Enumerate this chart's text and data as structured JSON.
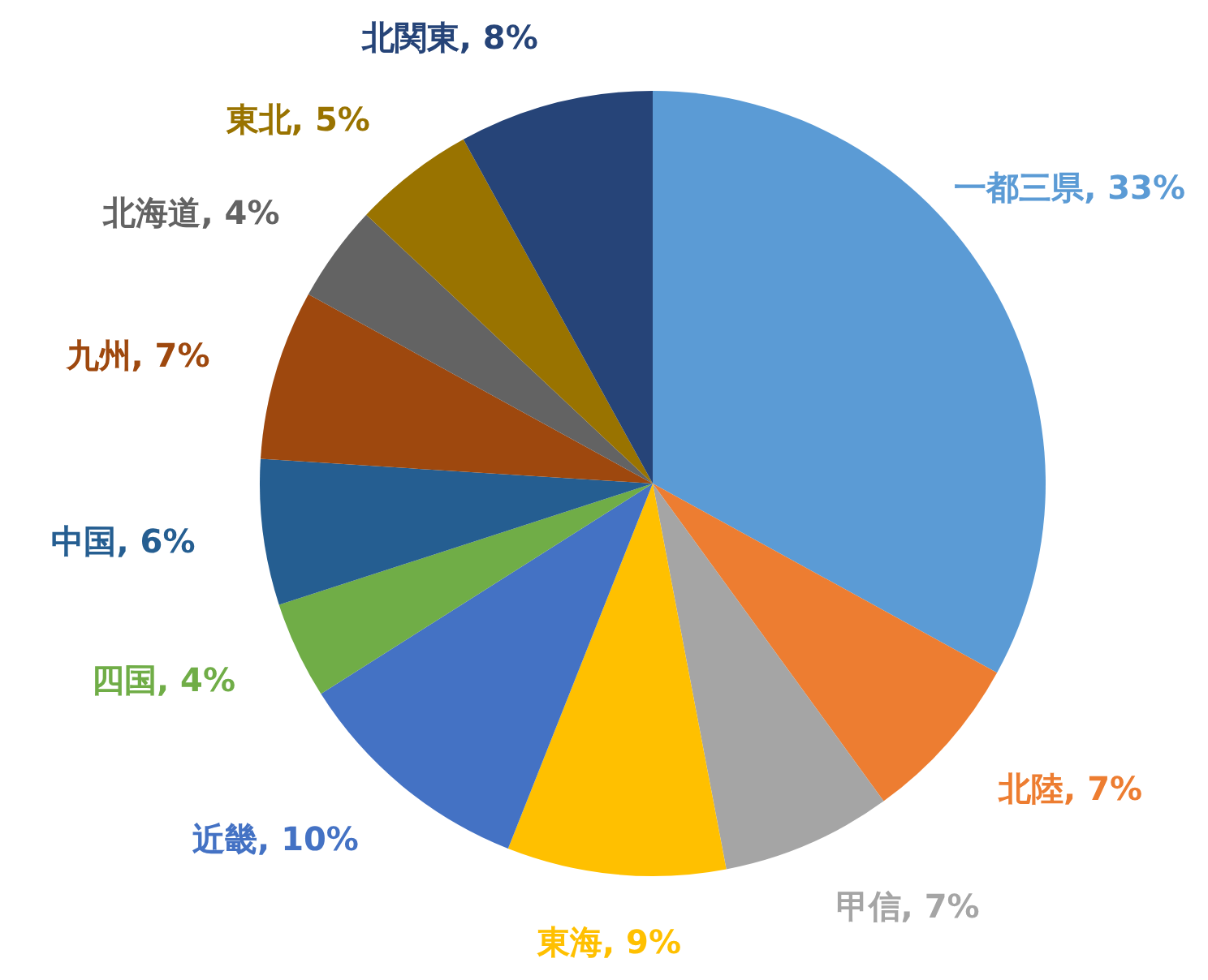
{
  "chart_data": {
    "type": "pie",
    "categories": [
      "一都三県",
      "北陸",
      "甲信",
      "東海",
      "近畿",
      "四国",
      "中国",
      "九州",
      "北海道",
      "東北",
      "北関東"
    ],
    "values": [
      33,
      7,
      7,
      9,
      10,
      4,
      6,
      7,
      4,
      5,
      8
    ],
    "value_labels": [
      "33%",
      "7%",
      "7%",
      "9%",
      "10%",
      "4%",
      "6%",
      "7%",
      "4%",
      "5%",
      "8%"
    ],
    "colors": [
      "#5b9bd5",
      "#ed7d31",
      "#a5a5a5",
      "#ffc000",
      "#4472c4",
      "#70ad47",
      "#255e91",
      "#9e480e",
      "#636363",
      "#997300",
      "#264478"
    ],
    "legend": false
  }
}
